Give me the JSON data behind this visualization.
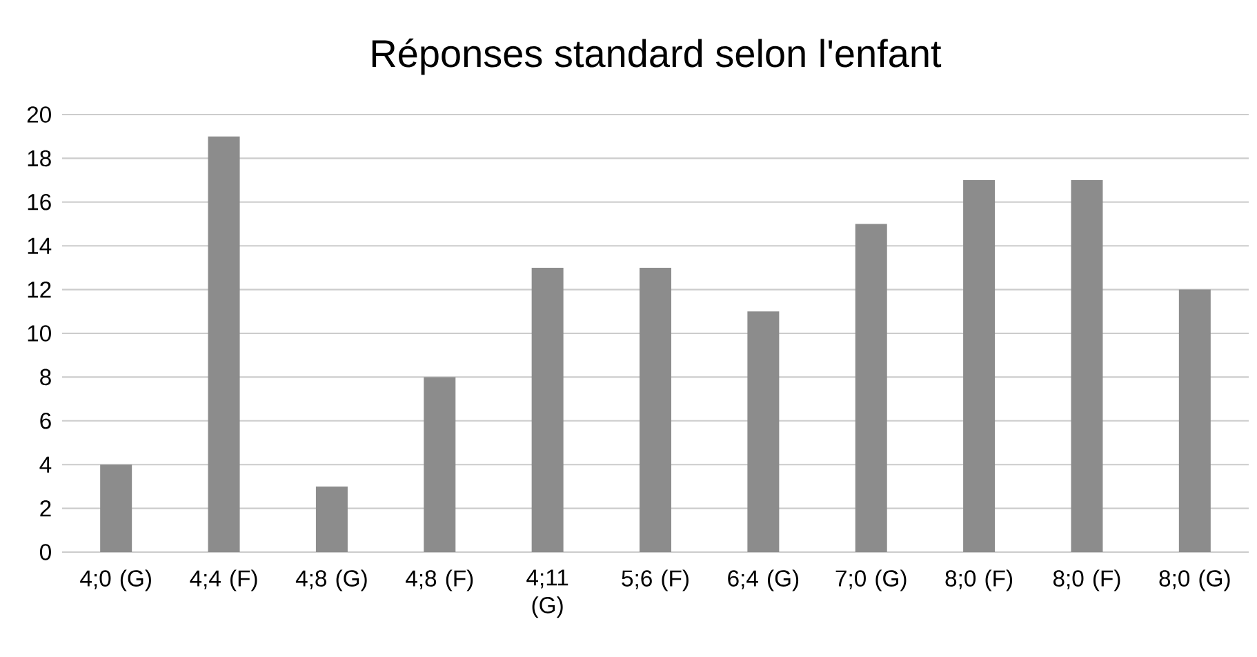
{
  "chart_data": {
    "type": "bar",
    "title": "Réponses standard selon l'enfant",
    "categories": [
      "4;0 (G)",
      "4;4 (F)",
      "4;8 (G)",
      "4;8 (F)",
      "4;11 (G)",
      "5;6 (F)",
      "6;4 (G)",
      "7;0 (G)",
      "8;0 (F)",
      "8;0 (F)",
      "8;0 (G)"
    ],
    "values": [
      4,
      19,
      3,
      8,
      13,
      13,
      11,
      15,
      17,
      17,
      12
    ],
    "color": "#8c8c8c",
    "ylim": [
      0,
      20
    ],
    "yticks": [
      0,
      2,
      4,
      6,
      8,
      10,
      12,
      14,
      16,
      18,
      20
    ],
    "grid": "y"
  }
}
